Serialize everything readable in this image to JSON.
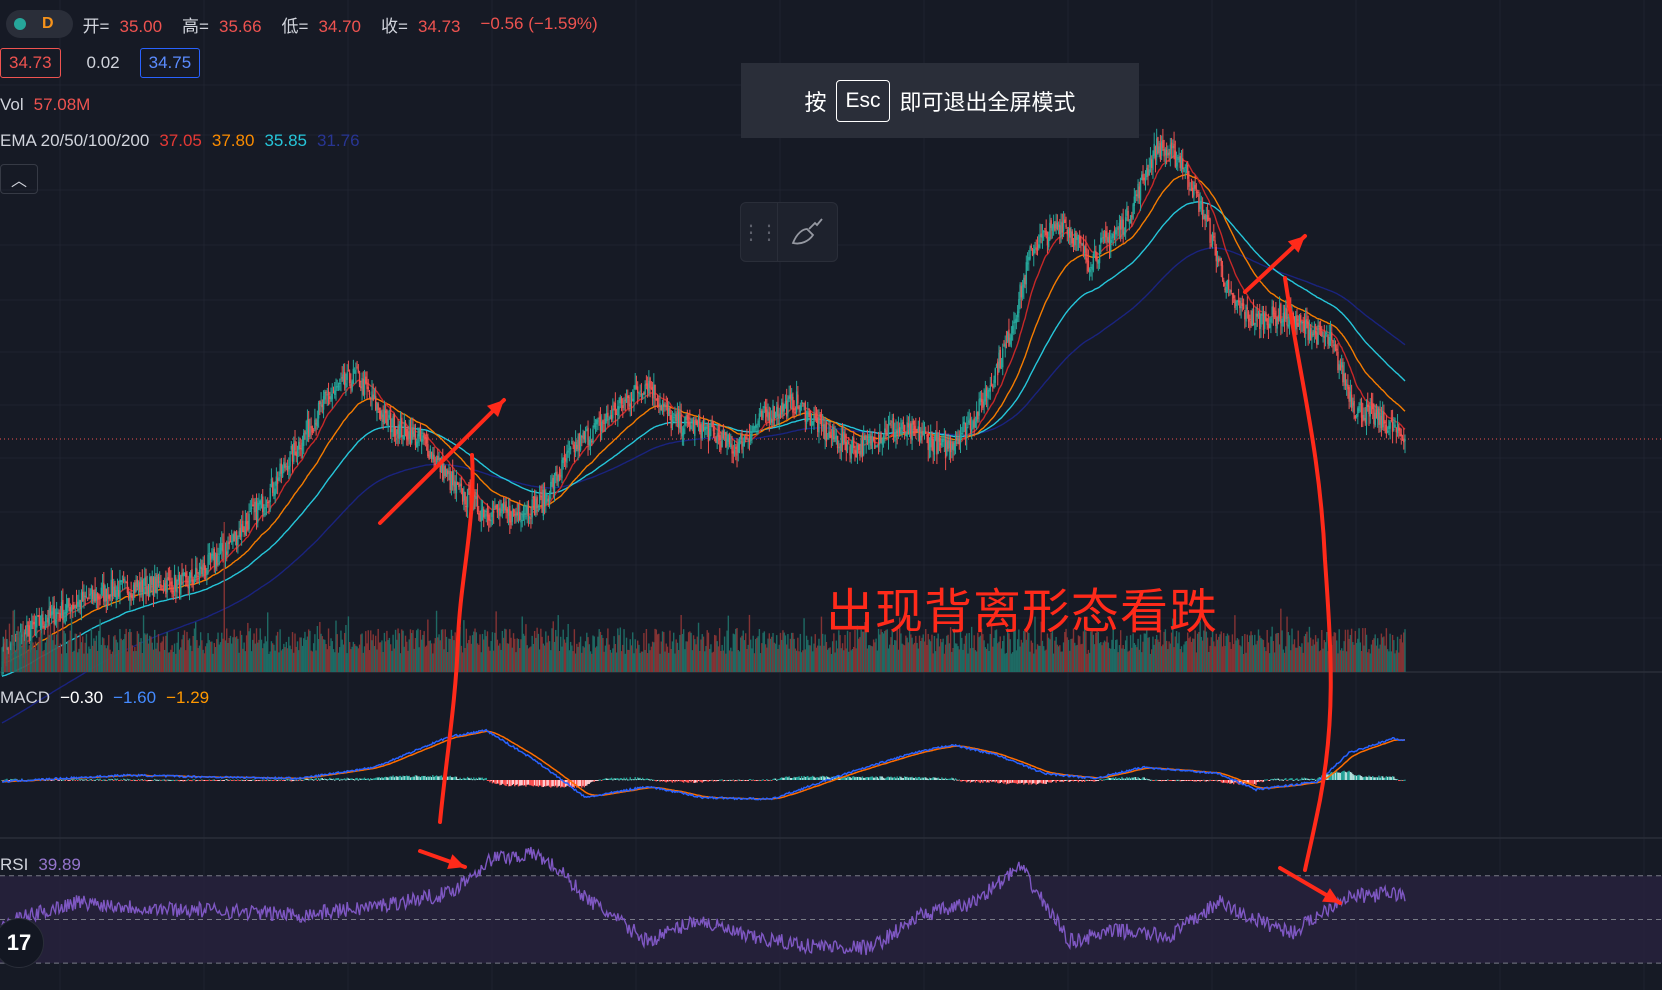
{
  "header": {
    "interval": "D",
    "ohlc": {
      "open_label": "开=",
      "open": "35.00",
      "high_label": "高=",
      "high": "35.66",
      "low_label": "低=",
      "low": "34.70",
      "close_label": "收=",
      "close": "34.73",
      "change": "−0.56 (−1.59%)"
    },
    "bid": "34.73",
    "spread": "0.02",
    "ask": "34.75"
  },
  "volume_legend": {
    "label": "Vol",
    "value": "57.08M"
  },
  "ema_legend": {
    "label": "EMA 20/50/100/200",
    "values": [
      "37.05",
      "37.80",
      "35.85",
      "31.76"
    ]
  },
  "macd_legend": {
    "label": "MACD",
    "values": [
      "−0.30",
      "−1.60",
      "−1.29"
    ]
  },
  "rsi_legend": {
    "label": "RSI",
    "value": "39.89"
  },
  "fullscreen_toast": {
    "prefix": "按",
    "key": "Esc",
    "suffix": "即可退出全屏模式"
  },
  "annotation": "出现背离形态看跌",
  "tv_logo": "17",
  "colors": {
    "up": "#26a69a",
    "down": "#ef5350",
    "ema20": "#c62828",
    "ema50": "#f57c00",
    "ema100": "#26c6da",
    "ema200": "#1a237e",
    "macd": "#2962ff",
    "signal": "#ff6d00",
    "rsi": "#7e57c2",
    "annotation": "#ff2a1a"
  },
  "chart_data": [
    {
      "type": "candlestick",
      "pane": "price",
      "y_unit": "price",
      "ylim": [
        16,
        63
      ],
      "last_price": 34.73,
      "ema_latest": {
        "EMA20": 37.05,
        "EMA50": 37.8,
        "EMA100": 35.85,
        "EMA200": 31.76
      },
      "anchors": [
        [
          0,
          18.5
        ],
        [
          30,
          21
        ],
        [
          60,
          22.5
        ],
        [
          90,
          23.5
        ],
        [
          120,
          23.8
        ],
        [
          150,
          24
        ],
        [
          180,
          26.5
        ],
        [
          210,
          30
        ],
        [
          240,
          34.5
        ],
        [
          262,
          37.8
        ],
        [
          285,
          39.5
        ],
        [
          310,
          36
        ],
        [
          340,
          34.5
        ],
        [
          365,
          31
        ],
        [
          385,
          29.5
        ],
        [
          410,
          29
        ],
        [
          435,
          30
        ],
        [
          460,
          34
        ],
        [
          490,
          36.5
        ],
        [
          520,
          39
        ],
        [
          540,
          36
        ],
        [
          565,
          35.5
        ],
        [
          590,
          34
        ],
        [
          615,
          36.5
        ],
        [
          640,
          37.5
        ],
        [
          665,
          35
        ],
        [
          690,
          34
        ],
        [
          715,
          35.5
        ],
        [
          740,
          35
        ],
        [
          760,
          34
        ],
        [
          785,
          36.5
        ],
        [
          810,
          42
        ],
        [
          830,
          49
        ],
        [
          855,
          51
        ],
        [
          875,
          48
        ],
        [
          905,
          51
        ],
        [
          930,
          56.5
        ],
        [
          950,
          55.5
        ],
        [
          970,
          51
        ],
        [
          990,
          45
        ],
        [
          1010,
          43.5
        ],
        [
          1030,
          44
        ],
        [
          1050,
          43
        ],
        [
          1070,
          42
        ],
        [
          1090,
          37
        ],
        [
          1113,
          36
        ],
        [
          1130,
          34.7
        ]
      ]
    },
    {
      "type": "bar",
      "pane": "volume",
      "series": [
        {
          "name": "Vol",
          "latest": "57.08M"
        }
      ]
    },
    {
      "type": "line",
      "pane": "macd",
      "series": [
        {
          "name": "MACD",
          "latest": -0.3
        },
        {
          "name": "Signal",
          "latest": -1.6
        },
        {
          "name": "Histogram",
          "latest": -1.29
        }
      ],
      "ylim": [
        -4,
        4
      ],
      "macd_anchors": [
        [
          0,
          -0.1
        ],
        [
          100,
          0.3
        ],
        [
          160,
          0.2
        ],
        [
          240,
          0.1
        ],
        [
          300,
          0.8
        ],
        [
          360,
          2.7
        ],
        [
          390,
          3.1
        ],
        [
          430,
          1.2
        ],
        [
          470,
          -1.1
        ],
        [
          520,
          -0.4
        ],
        [
          565,
          -1.1
        ],
        [
          620,
          -1.2
        ],
        [
          680,
          0.4
        ],
        [
          730,
          1.6
        ],
        [
          765,
          2.2
        ],
        [
          800,
          1.6
        ],
        [
          840,
          0.4
        ],
        [
          880,
          0.1
        ],
        [
          920,
          0.8
        ],
        [
          980,
          0.4
        ],
        [
          1010,
          -0.6
        ],
        [
          1060,
          -0.1
        ],
        [
          1085,
          1.7
        ],
        [
          1120,
          2.6
        ],
        [
          1170,
          1.9
        ],
        [
          1210,
          2.8
        ],
        [
          1250,
          2.1
        ],
        [
          1280,
          0.2
        ],
        [
          1330,
          -1.1
        ],
        [
          1380,
          -2.2
        ],
        [
          1400,
          -2.2
        ]
      ]
    },
    {
      "type": "line",
      "pane": "rsi",
      "series": [
        {
          "name": "RSI",
          "latest": 39.89
        }
      ],
      "ylim": [
        20,
        85
      ],
      "bands": [
        70,
        50,
        30
      ],
      "anchors": [
        [
          0,
          48
        ],
        [
          60,
          58
        ],
        [
          120,
          55
        ],
        [
          180,
          54
        ],
        [
          240,
          52
        ],
        [
          300,
          56
        ],
        [
          360,
          62
        ],
        [
          395,
          78
        ],
        [
          430,
          80
        ],
        [
          450,
          72
        ],
        [
          470,
          60
        ],
        [
          520,
          40
        ],
        [
          560,
          50
        ],
        [
          600,
          42
        ],
        [
          650,
          38
        ],
        [
          700,
          37
        ],
        [
          740,
          52
        ],
        [
          780,
          57
        ],
        [
          820,
          74
        ],
        [
          860,
          40
        ],
        [
          900,
          45
        ],
        [
          940,
          42
        ],
        [
          980,
          58
        ],
        [
          1000,
          52
        ],
        [
          1040,
          44
        ],
        [
          1080,
          60
        ],
        [
          1120,
          62
        ],
        [
          1160,
          58
        ],
        [
          1210,
          70
        ],
        [
          1250,
          58
        ],
        [
          1280,
          42
        ],
        [
          1320,
          38
        ],
        [
          1360,
          35
        ],
        [
          1395,
          28
        ],
        [
          1405,
          34
        ]
      ]
    }
  ]
}
